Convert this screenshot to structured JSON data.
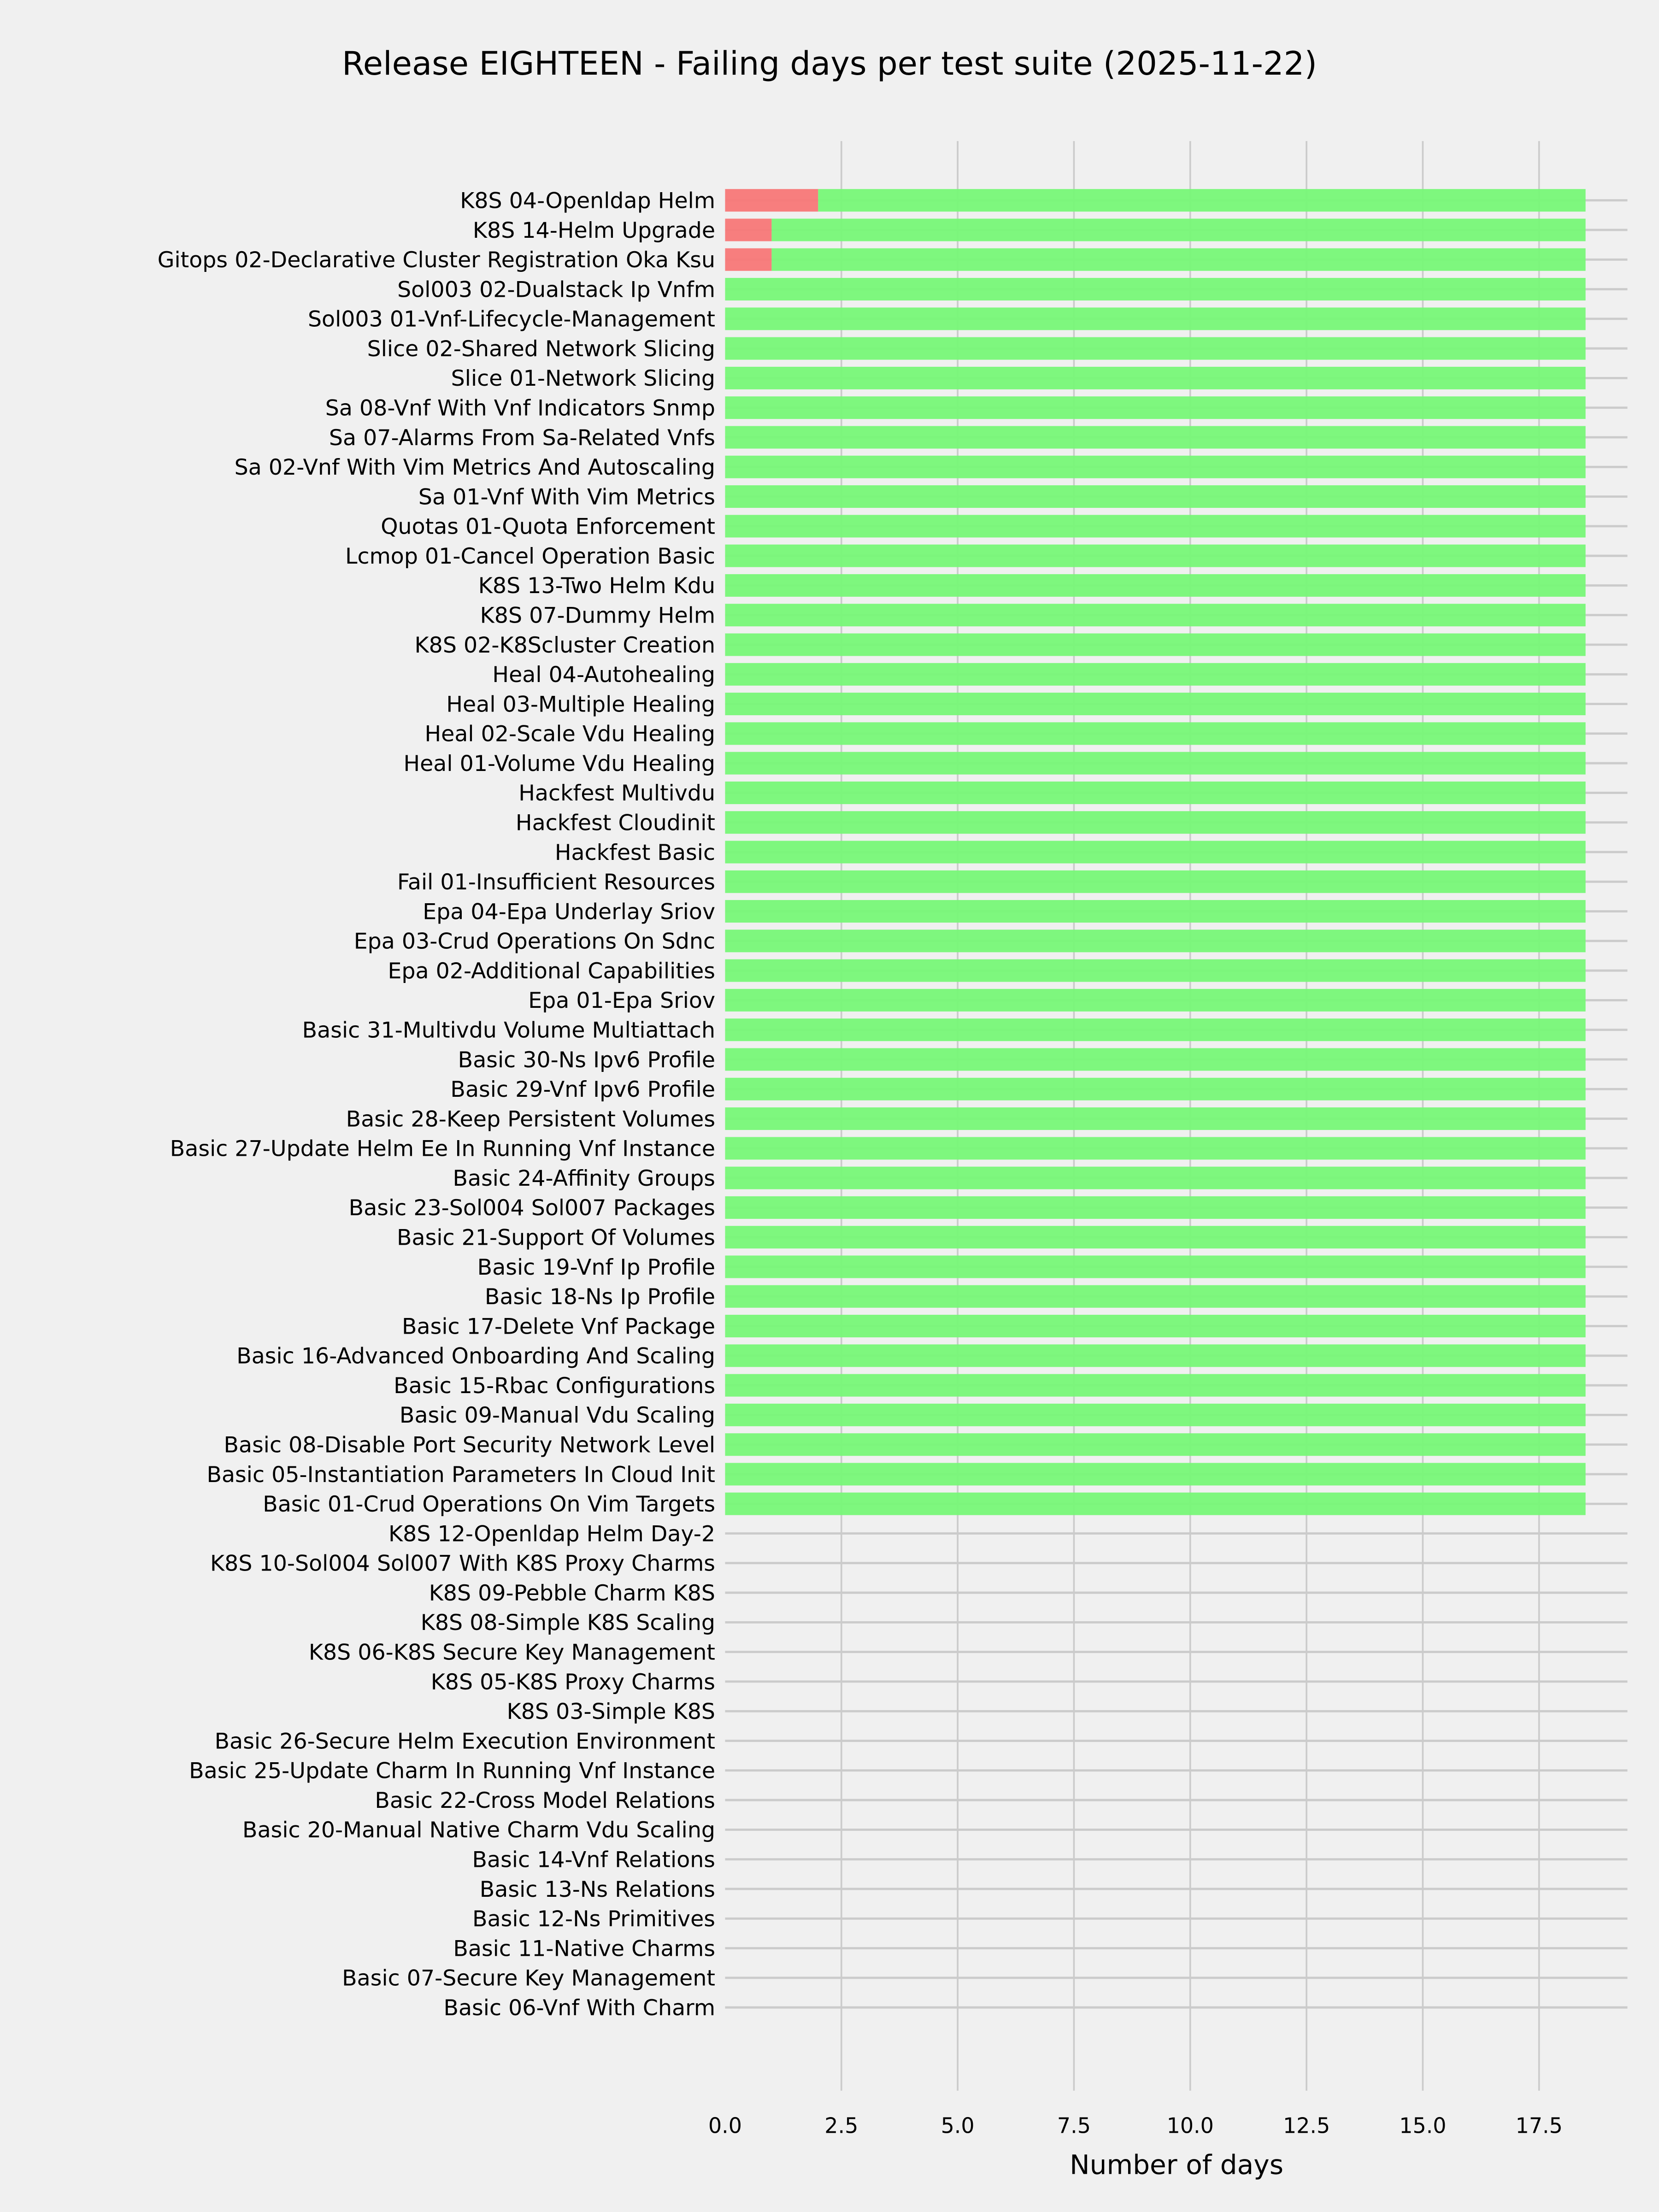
{
  "chart_data": {
    "type": "bar",
    "orientation": "horizontal",
    "stacked": true,
    "title": "Release EIGHTEEN - Failing days per test suite (2025-11-22)",
    "xlabel": "Number of days",
    "ylabel": "",
    "xlim": [
      0,
      19.4
    ],
    "xticks": [
      "0.0",
      "2.5",
      "5.0",
      "7.5",
      "10.0",
      "12.5",
      "15.0",
      "17.5"
    ],
    "grid": true,
    "colors": {
      "fail": "#f77777",
      "pass": "#77f777",
      "background": "#f0f0f0",
      "grid": "#cbcbcb"
    },
    "categories": [
      "K8S 04-Openldap Helm",
      "K8S 14-Helm Upgrade",
      "Gitops 02-Declarative Cluster Registration Oka Ksu",
      "Sol003 02-Dualstack Ip Vnfm",
      "Sol003 01-Vnf-Lifecycle-Management",
      "Slice 02-Shared Network Slicing",
      "Slice 01-Network Slicing",
      "Sa 08-Vnf With Vnf Indicators Snmp",
      "Sa 07-Alarms From Sa-Related Vnfs",
      "Sa 02-Vnf With Vim Metrics And Autoscaling",
      "Sa 01-Vnf With Vim Metrics",
      "Quotas 01-Quota Enforcement",
      "Lcmop 01-Cancel Operation Basic",
      "K8S 13-Two Helm Kdu",
      "K8S 07-Dummy Helm",
      "K8S 02-K8Scluster Creation",
      "Heal 04-Autohealing",
      "Heal 03-Multiple Healing",
      "Heal 02-Scale Vdu Healing",
      "Heal 01-Volume Vdu Healing",
      "Hackfest Multivdu",
      "Hackfest Cloudinit",
      "Hackfest Basic",
      "Fail 01-Insufficient Resources",
      "Epa 04-Epa Underlay Sriov",
      "Epa 03-Crud Operations On Sdnc",
      "Epa 02-Additional Capabilities",
      "Epa 01-Epa Sriov",
      "Basic 31-Multivdu Volume Multiattach",
      "Basic 30-Ns Ipv6 Profile",
      "Basic 29-Vnf Ipv6 Profile",
      "Basic 28-Keep Persistent Volumes",
      "Basic 27-Update Helm Ee In Running Vnf Instance",
      "Basic 24-Affinity Groups",
      "Basic 23-Sol004 Sol007 Packages",
      "Basic 21-Support Of Volumes",
      "Basic 19-Vnf Ip Profile",
      "Basic 18-Ns Ip Profile",
      "Basic 17-Delete Vnf Package",
      "Basic 16-Advanced Onboarding And Scaling",
      "Basic 15-Rbac Configurations",
      "Basic 09-Manual Vdu Scaling",
      "Basic 08-Disable Port Security Network Level",
      "Basic 05-Instantiation Parameters In Cloud Init",
      "Basic 01-Crud Operations On Vim Targets",
      "K8S 12-Openldap Helm Day-2",
      "K8S 10-Sol004 Sol007 With K8S Proxy Charms",
      "K8S 09-Pebble Charm K8S",
      "K8S 08-Simple K8S Scaling",
      "K8S 06-K8S Secure Key Management",
      "K8S 05-K8S Proxy Charms",
      "K8S 03-Simple K8S",
      "Basic 26-Secure Helm Execution Environment",
      "Basic 25-Update Charm In Running Vnf Instance",
      "Basic 22-Cross Model Relations",
      "Basic 20-Manual Native Charm Vdu Scaling",
      "Basic 14-Vnf Relations",
      "Basic 13-Ns Relations",
      "Basic 12-Ns Primitives",
      "Basic 11-Native Charms",
      "Basic 07-Secure Key Management",
      "Basic 06-Vnf With Charm"
    ],
    "series": [
      {
        "key": "fail",
        "values": [
          2,
          1,
          1,
          0,
          0,
          0,
          0,
          0,
          0,
          0,
          0,
          0,
          0,
          0,
          0,
          0,
          0,
          0,
          0,
          0,
          0,
          0,
          0,
          0,
          0,
          0,
          0,
          0,
          0,
          0,
          0,
          0,
          0,
          0,
          0,
          0,
          0,
          0,
          0,
          0,
          0,
          0,
          0,
          0,
          0,
          0,
          0,
          0,
          0,
          0,
          0,
          0,
          0,
          0,
          0,
          0,
          0,
          0,
          0,
          0,
          0,
          0
        ]
      },
      {
        "key": "pass",
        "values": [
          16.5,
          17.5,
          17.5,
          18.5,
          18.5,
          18.5,
          18.5,
          18.5,
          18.5,
          18.5,
          18.5,
          18.5,
          18.5,
          18.5,
          18.5,
          18.5,
          18.5,
          18.5,
          18.5,
          18.5,
          18.5,
          18.5,
          18.5,
          18.5,
          18.5,
          18.5,
          18.5,
          18.5,
          18.5,
          18.5,
          18.5,
          18.5,
          18.5,
          18.5,
          18.5,
          18.5,
          18.5,
          18.5,
          18.5,
          18.5,
          18.5,
          18.5,
          18.5,
          18.5,
          18.5,
          0,
          0,
          0,
          0,
          0,
          0,
          0,
          0,
          0,
          0,
          0,
          0,
          0,
          0,
          0,
          0,
          0
        ]
      }
    ]
  }
}
